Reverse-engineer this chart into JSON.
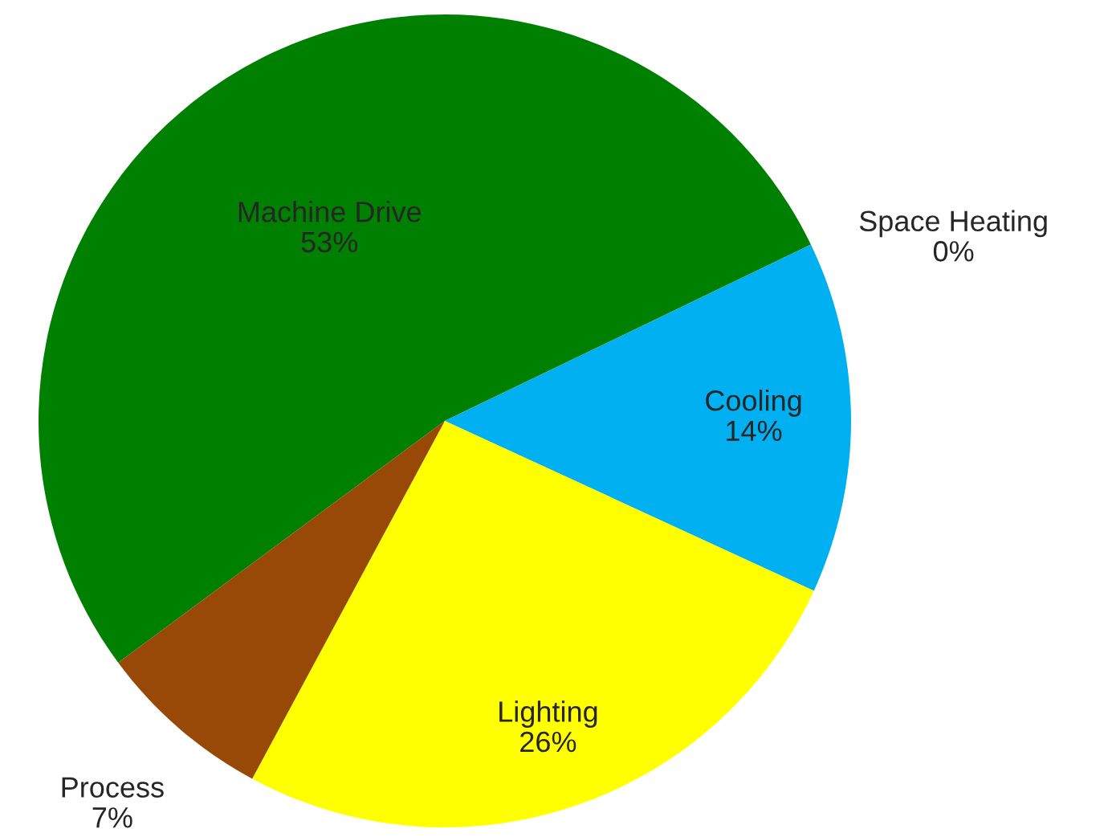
{
  "chart_data": {
    "type": "pie",
    "categories": [
      "Machine Drive",
      "Space Heating",
      "Cooling",
      "Lighting",
      "Process"
    ],
    "values": [
      53,
      0,
      14,
      26,
      7
    ],
    "colors": [
      "#008000",
      "#ff0000",
      "#00b0f0",
      "#ffff00",
      "#984807"
    ],
    "value_labels": [
      "53%",
      "0%",
      "14%",
      "26%",
      "7%"
    ],
    "legend": false
  }
}
